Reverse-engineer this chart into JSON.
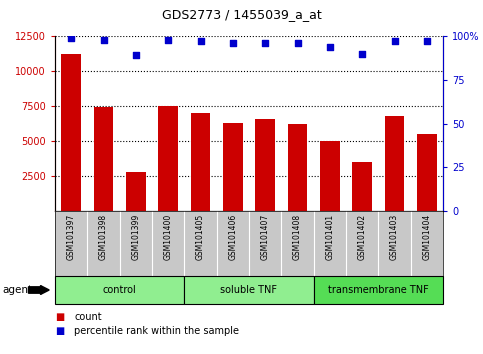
{
  "title": "GDS2773 / 1455039_a_at",
  "samples": [
    "GSM101397",
    "GSM101398",
    "GSM101399",
    "GSM101400",
    "GSM101405",
    "GSM101406",
    "GSM101407",
    "GSM101408",
    "GSM101401",
    "GSM101402",
    "GSM101403",
    "GSM101404"
  ],
  "counts": [
    11200,
    7400,
    2800,
    7500,
    7000,
    6300,
    6600,
    6200,
    5000,
    3500,
    6800,
    5500
  ],
  "percentiles": [
    99,
    98,
    89,
    98,
    97,
    96,
    96,
    96,
    94,
    90,
    97,
    97
  ],
  "percentile_max": 100,
  "count_max": 12500,
  "count_min": 0,
  "count_ticks": [
    2500,
    5000,
    7500,
    10000,
    12500
  ],
  "percentile_ticks": [
    0,
    25,
    50,
    75,
    100
  ],
  "percentile_tick_labels": [
    "0",
    "25",
    "50",
    "75",
    "100%"
  ],
  "groups": [
    {
      "label": "control",
      "indices": [
        0,
        1,
        2,
        3
      ],
      "color": "#90EE90"
    },
    {
      "label": "soluble TNF",
      "indices": [
        4,
        5,
        6,
        7
      ],
      "color": "#90EE90"
    },
    {
      "label": "transmembrane TNF",
      "indices": [
        8,
        9,
        10,
        11
      ],
      "color": "#55DD55"
    }
  ],
  "bar_color": "#CC0000",
  "dot_color": "#0000CC",
  "grid_color": "#000000",
  "bg_color": "#FFFFFF",
  "sample_bg_color": "#C8C8C8",
  "agent_label": "agent",
  "legend_count_label": "count",
  "legend_percentile_label": "percentile rank within the sample"
}
